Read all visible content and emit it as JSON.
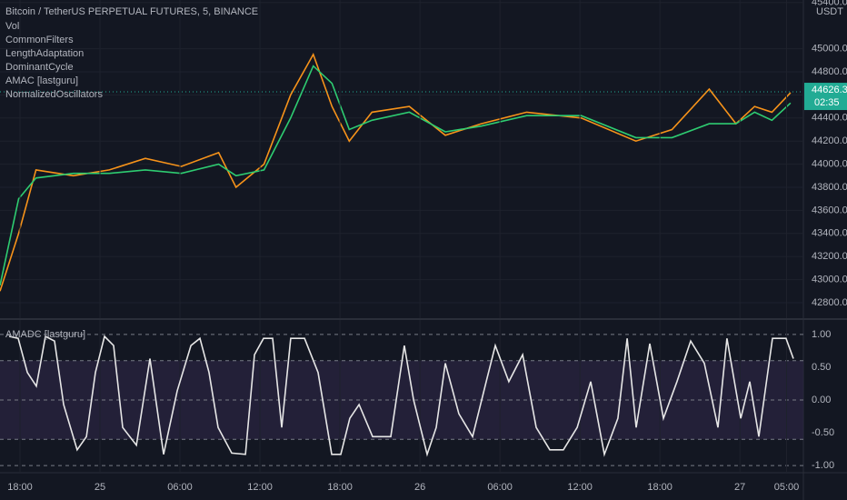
{
  "chart_data": [
    {
      "type": "line",
      "title": "Bitcoin / TetherUS PERPETUAL FUTURES, 5, BINANCE",
      "indicators": [
        "Vol",
        "CommonFilters",
        "LengthAdaptation",
        "DominantCycle",
        "AMAC [lastguru]",
        "NormalizedOscillators"
      ],
      "y_unit": "USDT",
      "price_tag": {
        "value": 44626.3,
        "countdown": "02:35",
        "color": "#22ab94"
      },
      "xlim": [
        -1.5,
        58.76
      ],
      "ylim": [
        42666,
        45422
      ],
      "yticks": [
        {
          "value": 42800,
          "label": "42800.0"
        },
        {
          "value": 43000,
          "label": "43000.0"
        },
        {
          "value": 43200,
          "label": "43200.0"
        },
        {
          "value": 43400,
          "label": "43400.0"
        },
        {
          "value": 43600,
          "label": "43600.0"
        },
        {
          "value": 43800,
          "label": "43800.0"
        },
        {
          "value": 44000,
          "label": "44000.0"
        },
        {
          "value": 44200,
          "label": "44200.0"
        },
        {
          "value": 44400,
          "label": "44400.0"
        },
        {
          "value": 44600,
          "label": "44600.0"
        },
        {
          "value": 44800,
          "label": "44800.0"
        },
        {
          "value": 45000,
          "label": "45000.0"
        },
        {
          "value": 45400,
          "label": "45400.0"
        }
      ],
      "grid": true,
      "x": [
        -1.5,
        -0.1,
        1.2,
        4,
        6.7,
        9.4,
        12.1,
        14.9,
        16.2,
        18.3,
        20.3,
        22,
        23.4,
        24.7,
        26.4,
        29.2,
        31.9,
        34.6,
        38,
        42.1,
        46.2,
        48.9,
        51.7,
        53.7,
        55.1,
        56.4,
        57.8
      ],
      "series": [
        {
          "color": "#f7931a",
          "values": [
            42900,
            43400,
            43950,
            43900,
            43950,
            44050,
            43980,
            44100,
            43800,
            44000,
            44600,
            44950,
            44500,
            44200,
            44450,
            44500,
            44250,
            44350,
            44450,
            44400,
            44200,
            44300,
            44650,
            44350,
            44500,
            44450,
            44620
          ]
        },
        {
          "color": "#2ecc71",
          "values": [
            42950,
            43700,
            43880,
            43920,
            43920,
            43950,
            43920,
            44000,
            43900,
            43950,
            44400,
            44850,
            44700,
            44300,
            44380,
            44450,
            44280,
            44330,
            44420,
            44420,
            44230,
            44230,
            44350,
            44350,
            44450,
            44380,
            44530
          ]
        }
      ]
    },
    {
      "type": "line",
      "title": "AMADC [lastguru]",
      "xlim": [
        -1.5,
        58.76
      ],
      "ylim": [
        -1.11,
        1.22
      ],
      "yticks": [
        {
          "value": 1,
          "label": "1.00"
        },
        {
          "value": 0.5,
          "label": "0.50"
        },
        {
          "value": 0,
          "label": "0.00"
        },
        {
          "value": -0.5,
          "label": "-0.50"
        },
        {
          "value": -1,
          "label": "-1.00"
        }
      ],
      "levels": [
        1,
        0.6,
        0,
        -0.6,
        -1
      ],
      "band": [
        0.6,
        -0.6
      ],
      "xticks": [
        {
          "value": 0,
          "label": "18:00"
        },
        {
          "value": 6,
          "label": "25"
        },
        {
          "value": 12,
          "label": "06:00"
        },
        {
          "value": 18,
          "label": "12:00"
        },
        {
          "value": 24,
          "label": "18:00"
        },
        {
          "value": 30,
          "label": "26"
        },
        {
          "value": 36,
          "label": "06:00"
        },
        {
          "value": 42,
          "label": "12:00"
        },
        {
          "value": 48,
          "label": "18:00"
        },
        {
          "value": 54,
          "label": "27"
        },
        {
          "value": 57.5,
          "label": "05:00"
        }
      ],
      "x": [
        -0.82,
        -0.14,
        0.55,
        1.23,
        1.91,
        2.59,
        3.27,
        4.29,
        4.98,
        5.66,
        6.34,
        7.02,
        7.7,
        8.73,
        9.75,
        10.77,
        11.79,
        12.82,
        13.5,
        14.18,
        14.86,
        15.88,
        16.91,
        17.59,
        18.27,
        18.95,
        19.63,
        20.31,
        21.34,
        22.36,
        23.38,
        24.06,
        24.74,
        25.43,
        26.45,
        27.81,
        28.83,
        29.52,
        30.54,
        31.22,
        31.9,
        32.92,
        33.95,
        34.97,
        35.65,
        36.67,
        37.7,
        38.72,
        39.74,
        40.76,
        41.79,
        42.81,
        43.83,
        44.85,
        45.54,
        46.22,
        47.24,
        48.26,
        49.28,
        50.31,
        51.33,
        52.35,
        53.03,
        54.06,
        54.74,
        55.42,
        56.44,
        57.46,
        58.01
      ],
      "series": [
        {
          "color": "#e6e6e6",
          "values": [
            0.97,
            0.94,
            0.42,
            0.21,
            0.97,
            0.9,
            -0.07,
            -0.76,
            -0.56,
            0.42,
            0.97,
            0.83,
            -0.42,
            -0.69,
            0.63,
            -0.83,
            0.14,
            0.83,
            0.94,
            0.42,
            -0.42,
            -0.81,
            -0.83,
            0.69,
            0.94,
            0.94,
            -0.42,
            0.94,
            0.94,
            0.42,
            -0.83,
            -0.83,
            -0.28,
            -0.07,
            -0.56,
            -0.56,
            0.83,
            0,
            -0.83,
            -0.42,
            0.56,
            -0.21,
            -0.56,
            0.28,
            0.83,
            0.28,
            0.69,
            -0.42,
            -0.76,
            -0.76,
            -0.42,
            0.28,
            -0.83,
            -0.28,
            0.94,
            -0.42,
            0.86,
            -0.28,
            0.28,
            0.9,
            0.56,
            -0.42,
            0.94,
            -0.28,
            0.28,
            -0.56,
            0.94,
            0.94,
            0.63
          ]
        }
      ]
    }
  ]
}
